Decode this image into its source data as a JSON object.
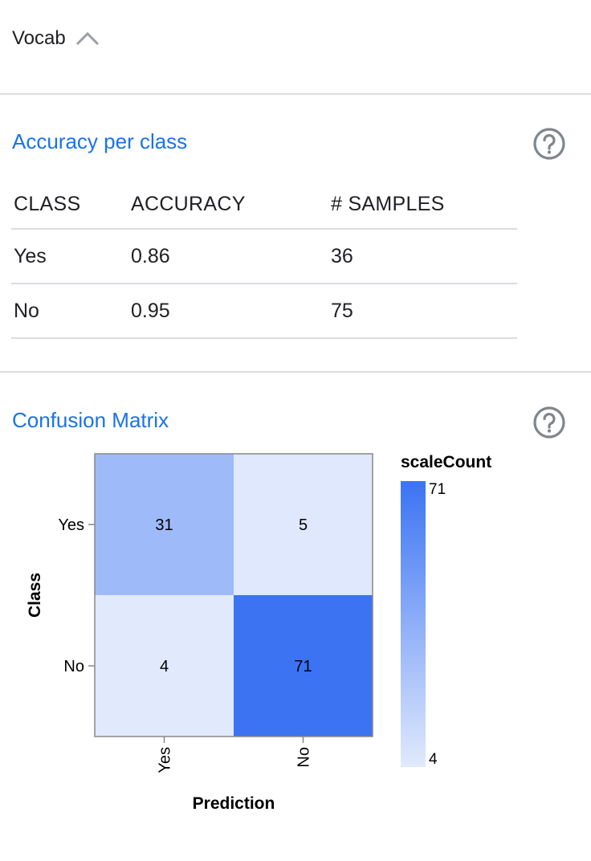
{
  "vocab": {
    "title": "Vocab",
    "toggle_icon": "chevron-up-icon"
  },
  "accuracy": {
    "title": "Accuracy per class",
    "help_icon": "help-circle-icon",
    "headers": [
      "CLASS",
      "ACCURACY",
      "# SAMPLES"
    ],
    "rows": [
      {
        "class": "Yes",
        "accuracy": "0.86",
        "samples": "36"
      },
      {
        "class": "No",
        "accuracy": "0.95",
        "samples": "75"
      }
    ]
  },
  "confusion": {
    "title": "Confusion Matrix",
    "help_icon": "help-circle-icon"
  },
  "chart_data": {
    "type": "heatmap",
    "title": "Confusion Matrix",
    "xlabel": "Prediction",
    "ylabel": "Class",
    "x_categories": [
      "Yes",
      "No"
    ],
    "y_categories": [
      "Yes",
      "No"
    ],
    "values": [
      [
        31,
        5
      ],
      [
        4,
        71
      ]
    ],
    "legend": {
      "title": "scaleCount",
      "min": 4,
      "max": 71,
      "placement": "right"
    },
    "colors": {
      "low": "#e1eafd",
      "high": "#3b73f3"
    }
  }
}
